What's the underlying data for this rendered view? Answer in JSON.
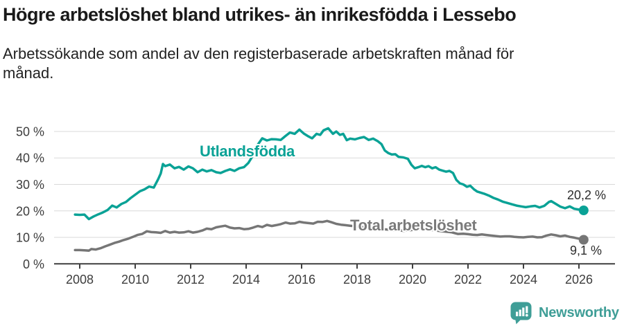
{
  "header": {
    "title": "Högre arbetslöshet bland utrikes- än inrikesfödda i Lessebo",
    "subtitle_lines": [
      "Arbetssökande som andel av den registerbaserade arbetskraften månad för",
      "månad."
    ]
  },
  "chart_data": {
    "type": "line",
    "title": "Högre arbetslöshet bland utrikes- än inrikesfödda i Lessebo",
    "xlabel": "",
    "ylabel": "Arbetssökande som andel av den registerbaserade arbetskraften",
    "grid": true,
    "legend": "inline-labels",
    "x_axis": {
      "range": [
        2007.7,
        2026.6
      ],
      "ticks": [
        {
          "value": 2008,
          "label": "2008"
        },
        {
          "value": 2010,
          "label": "2010"
        },
        {
          "value": 2012,
          "label": "2012"
        },
        {
          "value": 2014,
          "label": "2014"
        },
        {
          "value": 2016,
          "label": "2016"
        },
        {
          "value": 2018,
          "label": "2018"
        },
        {
          "value": 2020,
          "label": "2020"
        },
        {
          "value": 2022,
          "label": "2022"
        },
        {
          "value": 2024,
          "label": "2024"
        },
        {
          "value": 2026,
          "label": "2026"
        }
      ]
    },
    "y_axis": {
      "range": [
        0,
        52.5
      ],
      "unit": "%",
      "ticks": [
        {
          "value": 0,
          "label": "0 %"
        },
        {
          "value": 10,
          "label": "10 %"
        },
        {
          "value": 20,
          "label": "20 %"
        },
        {
          "value": 30,
          "label": "30 %"
        },
        {
          "value": 40,
          "label": "40 %"
        },
        {
          "value": 50,
          "label": "50 %"
        }
      ]
    },
    "series": [
      {
        "id": "utlandsfodda",
        "name": "Utlandsfödda",
        "color": "#0aa296",
        "label_color": "#0aa296",
        "end_label": "20,2 %",
        "end_value": 20.2,
        "points": [
          [
            2007.83,
            18.6
          ],
          [
            2008.0,
            18.5
          ],
          [
            2008.17,
            18.6
          ],
          [
            2008.33,
            16.9
          ],
          [
            2008.5,
            17.9
          ],
          [
            2008.67,
            18.7
          ],
          [
            2008.83,
            19.4
          ],
          [
            2009.0,
            20.3
          ],
          [
            2009.17,
            22.0
          ],
          [
            2009.33,
            21.3
          ],
          [
            2009.5,
            22.6
          ],
          [
            2009.67,
            23.4
          ],
          [
            2009.83,
            24.8
          ],
          [
            2010.0,
            26.1
          ],
          [
            2010.17,
            27.4
          ],
          [
            2010.33,
            28.1
          ],
          [
            2010.5,
            29.2
          ],
          [
            2010.67,
            28.8
          ],
          [
            2010.83,
            32.0
          ],
          [
            2010.92,
            34.1
          ],
          [
            2011.0,
            37.7
          ],
          [
            2011.08,
            36.9
          ],
          [
            2011.25,
            37.5
          ],
          [
            2011.42,
            36.1
          ],
          [
            2011.58,
            36.6
          ],
          [
            2011.75,
            35.6
          ],
          [
            2011.92,
            36.8
          ],
          [
            2012.08,
            36.1
          ],
          [
            2012.25,
            34.6
          ],
          [
            2012.42,
            35.6
          ],
          [
            2012.58,
            34.9
          ],
          [
            2012.75,
            35.4
          ],
          [
            2012.92,
            34.6
          ],
          [
            2013.08,
            34.3
          ],
          [
            2013.25,
            35.1
          ],
          [
            2013.42,
            35.7
          ],
          [
            2013.58,
            35.1
          ],
          [
            2013.75,
            36.1
          ],
          [
            2013.92,
            36.5
          ],
          [
            2014.08,
            38.1
          ],
          [
            2014.25,
            41.0
          ],
          [
            2014.42,
            45.0
          ],
          [
            2014.58,
            47.4
          ],
          [
            2014.75,
            46.6
          ],
          [
            2014.92,
            47.1
          ],
          [
            2015.08,
            47.0
          ],
          [
            2015.25,
            46.8
          ],
          [
            2015.42,
            48.3
          ],
          [
            2015.58,
            49.6
          ],
          [
            2015.75,
            49.1
          ],
          [
            2015.92,
            50.7
          ],
          [
            2016.08,
            49.2
          ],
          [
            2016.25,
            48.1
          ],
          [
            2016.38,
            47.4
          ],
          [
            2016.54,
            49.1
          ],
          [
            2016.67,
            48.7
          ],
          [
            2016.79,
            50.4
          ],
          [
            2016.96,
            51.2
          ],
          [
            2017.13,
            49.1
          ],
          [
            2017.25,
            50.0
          ],
          [
            2017.38,
            48.7
          ],
          [
            2017.5,
            49.1
          ],
          [
            2017.63,
            46.7
          ],
          [
            2017.75,
            47.3
          ],
          [
            2017.92,
            47.0
          ],
          [
            2018.08,
            47.5
          ],
          [
            2018.25,
            47.9
          ],
          [
            2018.42,
            46.8
          ],
          [
            2018.58,
            47.3
          ],
          [
            2018.75,
            46.3
          ],
          [
            2018.88,
            45.2
          ],
          [
            2019.0,
            42.8
          ],
          [
            2019.13,
            41.8
          ],
          [
            2019.25,
            41.3
          ],
          [
            2019.38,
            41.4
          ],
          [
            2019.5,
            40.4
          ],
          [
            2019.67,
            40.2
          ],
          [
            2019.83,
            39.7
          ],
          [
            2019.96,
            37.4
          ],
          [
            2020.08,
            36.1
          ],
          [
            2020.21,
            36.5
          ],
          [
            2020.33,
            37.0
          ],
          [
            2020.46,
            36.5
          ],
          [
            2020.58,
            36.9
          ],
          [
            2020.71,
            36.1
          ],
          [
            2020.83,
            36.5
          ],
          [
            2020.96,
            35.6
          ],
          [
            2021.08,
            35.2
          ],
          [
            2021.21,
            34.8
          ],
          [
            2021.33,
            35.1
          ],
          [
            2021.46,
            34.3
          ],
          [
            2021.58,
            31.7
          ],
          [
            2021.71,
            30.4
          ],
          [
            2021.83,
            30.0
          ],
          [
            2021.96,
            29.1
          ],
          [
            2022.08,
            29.5
          ],
          [
            2022.21,
            28.2
          ],
          [
            2022.33,
            27.3
          ],
          [
            2022.46,
            26.9
          ],
          [
            2022.58,
            26.5
          ],
          [
            2022.75,
            25.8
          ],
          [
            2022.92,
            24.9
          ],
          [
            2023.08,
            24.3
          ],
          [
            2023.25,
            23.5
          ],
          [
            2023.42,
            23.0
          ],
          [
            2023.58,
            22.5
          ],
          [
            2023.75,
            22.0
          ],
          [
            2023.92,
            21.7
          ],
          [
            2024.08,
            21.4
          ],
          [
            2024.25,
            21.7
          ],
          [
            2024.42,
            21.9
          ],
          [
            2024.58,
            21.3
          ],
          [
            2024.75,
            21.9
          ],
          [
            2024.92,
            23.4
          ],
          [
            2025.0,
            23.7
          ],
          [
            2025.17,
            22.6
          ],
          [
            2025.33,
            21.6
          ],
          [
            2025.5,
            21.0
          ],
          [
            2025.67,
            21.7
          ],
          [
            2025.83,
            20.8
          ],
          [
            2026.0,
            20.5
          ],
          [
            2026.17,
            20.2
          ]
        ]
      },
      {
        "id": "total",
        "name": "Total arbetslöshet",
        "color": "#767676",
        "label_color": "#7a7a7a",
        "end_label": "9,1 %",
        "end_value": 9.1,
        "points": [
          [
            2007.83,
            5.2
          ],
          [
            2008.0,
            5.2
          ],
          [
            2008.17,
            5.1
          ],
          [
            2008.33,
            5.0
          ],
          [
            2008.42,
            5.6
          ],
          [
            2008.58,
            5.4
          ],
          [
            2008.75,
            5.9
          ],
          [
            2008.92,
            6.6
          ],
          [
            2009.08,
            7.2
          ],
          [
            2009.25,
            7.9
          ],
          [
            2009.42,
            8.4
          ],
          [
            2009.58,
            9.0
          ],
          [
            2009.75,
            9.5
          ],
          [
            2009.92,
            10.2
          ],
          [
            2010.08,
            10.9
          ],
          [
            2010.25,
            11.3
          ],
          [
            2010.42,
            12.3
          ],
          [
            2010.58,
            12.0
          ],
          [
            2010.75,
            11.9
          ],
          [
            2010.92,
            11.7
          ],
          [
            2011.08,
            12.4
          ],
          [
            2011.25,
            11.8
          ],
          [
            2011.42,
            12.1
          ],
          [
            2011.58,
            11.8
          ],
          [
            2011.75,
            11.9
          ],
          [
            2011.92,
            12.3
          ],
          [
            2012.08,
            11.8
          ],
          [
            2012.25,
            12.1
          ],
          [
            2012.42,
            12.6
          ],
          [
            2012.58,
            13.3
          ],
          [
            2012.75,
            13.1
          ],
          [
            2012.92,
            13.8
          ],
          [
            2013.08,
            14.1
          ],
          [
            2013.25,
            14.4
          ],
          [
            2013.42,
            13.7
          ],
          [
            2013.58,
            13.4
          ],
          [
            2013.75,
            13.5
          ],
          [
            2013.92,
            13.1
          ],
          [
            2014.08,
            13.2
          ],
          [
            2014.25,
            13.7
          ],
          [
            2014.42,
            14.3
          ],
          [
            2014.58,
            13.9
          ],
          [
            2014.75,
            14.7
          ],
          [
            2014.92,
            14.3
          ],
          [
            2015.08,
            14.6
          ],
          [
            2015.25,
            15.0
          ],
          [
            2015.42,
            15.6
          ],
          [
            2015.58,
            15.2
          ],
          [
            2015.75,
            15.3
          ],
          [
            2015.92,
            15.9
          ],
          [
            2016.08,
            15.6
          ],
          [
            2016.25,
            15.4
          ],
          [
            2016.42,
            15.2
          ],
          [
            2016.58,
            15.9
          ],
          [
            2016.75,
            15.8
          ],
          [
            2016.92,
            16.2
          ],
          [
            2017.08,
            15.7
          ],
          [
            2017.25,
            15.1
          ],
          [
            2017.42,
            14.8
          ],
          [
            2017.58,
            14.6
          ],
          [
            2017.75,
            14.4
          ],
          [
            2017.92,
            14.2
          ],
          [
            2018.17,
            13.9
          ],
          [
            2018.42,
            13.6
          ],
          [
            2018.67,
            13.4
          ],
          [
            2018.92,
            13.1
          ],
          [
            2019.17,
            12.9
          ],
          [
            2019.42,
            12.7
          ],
          [
            2019.67,
            12.5
          ],
          [
            2019.92,
            12.7
          ],
          [
            2020.17,
            13.1
          ],
          [
            2020.42,
            13.2
          ],
          [
            2020.67,
            12.8
          ],
          [
            2020.92,
            12.5
          ],
          [
            2021.17,
            12.2
          ],
          [
            2021.42,
            11.9
          ],
          [
            2021.63,
            11.3
          ],
          [
            2021.83,
            11.4
          ],
          [
            2022.0,
            11.2
          ],
          [
            2022.17,
            11.0
          ],
          [
            2022.33,
            10.9
          ],
          [
            2022.5,
            11.1
          ],
          [
            2022.67,
            10.9
          ],
          [
            2022.83,
            10.7
          ],
          [
            2023.0,
            10.5
          ],
          [
            2023.17,
            10.3
          ],
          [
            2023.33,
            10.4
          ],
          [
            2023.5,
            10.4
          ],
          [
            2023.67,
            10.2
          ],
          [
            2023.83,
            10.1
          ],
          [
            2024.0,
            10.0
          ],
          [
            2024.17,
            10.2
          ],
          [
            2024.33,
            10.3
          ],
          [
            2024.5,
            10.0
          ],
          [
            2024.67,
            10.1
          ],
          [
            2024.83,
            10.7
          ],
          [
            2025.0,
            11.1
          ],
          [
            2025.17,
            10.8
          ],
          [
            2025.33,
            10.4
          ],
          [
            2025.5,
            10.7
          ],
          [
            2025.67,
            10.2
          ],
          [
            2025.83,
            9.9
          ],
          [
            2026.0,
            9.5
          ],
          [
            2026.17,
            9.1
          ]
        ]
      }
    ]
  },
  "footer": {
    "brand": "Newsworthy",
    "brand_color": "#3f9e97"
  }
}
